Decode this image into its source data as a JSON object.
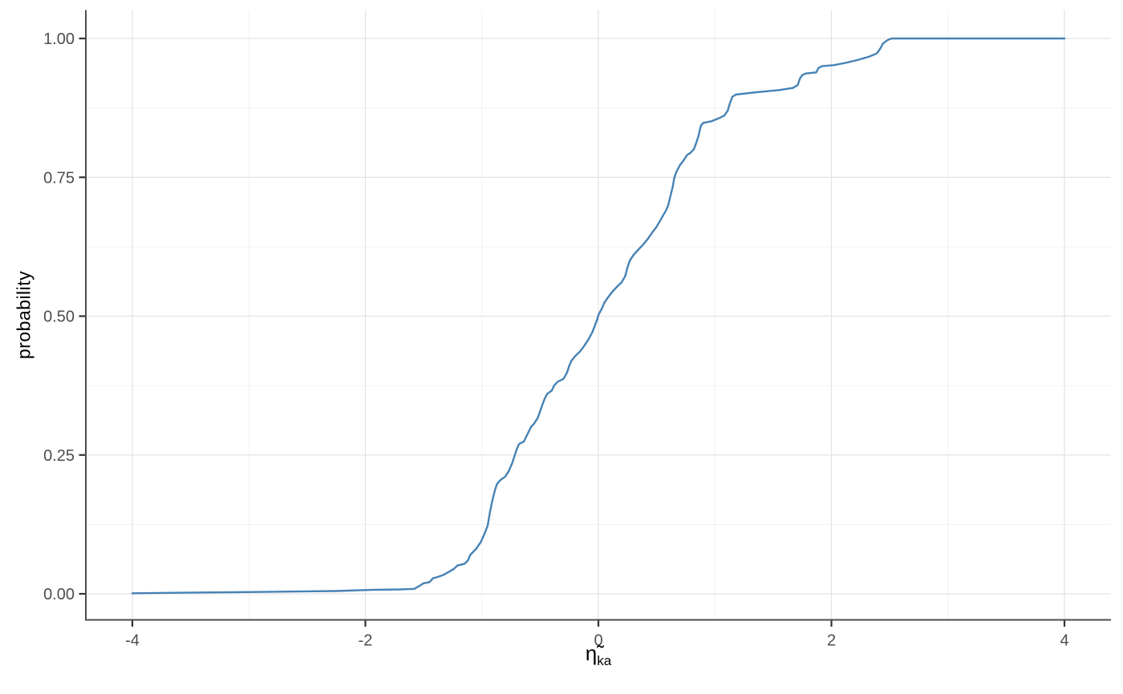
{
  "chart_data": {
    "type": "line",
    "subtype": "ecdf",
    "title": "",
    "xlabel_base": "η̃",
    "xlabel_sub": "ka",
    "ylabel": "probability",
    "legend": "none",
    "grid": true,
    "xlim": [
      -4.4,
      4.4
    ],
    "ylim": [
      -0.047,
      1.051
    ],
    "x_ticks": [
      {
        "value": -4,
        "label": "-4"
      },
      {
        "value": -2,
        "label": "-2"
      },
      {
        "value": 0,
        "label": "0"
      },
      {
        "value": 2,
        "label": "2"
      },
      {
        "value": 4,
        "label": "4"
      }
    ],
    "y_ticks": [
      {
        "value": 0.0,
        "label": "0.00"
      },
      {
        "value": 0.25,
        "label": "0.25"
      },
      {
        "value": 0.5,
        "label": "0.50"
      },
      {
        "value": 0.75,
        "label": "0.75"
      },
      {
        "value": 1.0,
        "label": "1.00"
      }
    ],
    "x_minor_ticks": [
      -3,
      -1,
      1,
      3
    ],
    "y_minor_ticks": [
      0.125,
      0.375,
      0.625,
      0.875
    ],
    "colors": {
      "line": "#4682B4",
      "grid_major": "#E3E3E3",
      "grid_minor": "#F0F0F0",
      "axis_line": "#4D4D4D",
      "tick_mark": "#333333",
      "tick_label": "#4D4D4D",
      "axis_title": "#000000",
      "background": "#FFFFFF"
    },
    "series": [
      {
        "name": "ecdf",
        "points": [
          [
            -4.0,
            0.001
          ],
          [
            -3.55,
            0.002
          ],
          [
            -3.1,
            0.003
          ],
          [
            -2.65,
            0.004
          ],
          [
            -2.25,
            0.005
          ],
          [
            -1.95,
            0.007
          ],
          [
            -1.7,
            0.008
          ],
          [
            -1.58,
            0.009
          ],
          [
            -1.53,
            0.015
          ],
          [
            -1.5,
            0.019
          ],
          [
            -1.45,
            0.021
          ],
          [
            -1.42,
            0.028
          ],
          [
            -1.37,
            0.031
          ],
          [
            -1.33,
            0.034
          ],
          [
            -1.28,
            0.04
          ],
          [
            -1.24,
            0.045
          ],
          [
            -1.21,
            0.051
          ],
          [
            -1.15,
            0.054
          ],
          [
            -1.12,
            0.06
          ],
          [
            -1.1,
            0.07
          ],
          [
            -1.05,
            0.081
          ],
          [
            -1.01,
            0.093
          ],
          [
            -0.98,
            0.107
          ],
          [
            -0.95,
            0.123
          ],
          [
            -0.93,
            0.148
          ],
          [
            -0.91,
            0.168
          ],
          [
            -0.89,
            0.185
          ],
          [
            -0.87,
            0.198
          ],
          [
            -0.84,
            0.205
          ],
          [
            -0.8,
            0.211
          ],
          [
            -0.77,
            0.221
          ],
          [
            -0.74,
            0.235
          ],
          [
            -0.72,
            0.248
          ],
          [
            -0.7,
            0.261
          ],
          [
            -0.68,
            0.27
          ],
          [
            -0.64,
            0.274
          ],
          [
            -0.61,
            0.287
          ],
          [
            -0.58,
            0.3
          ],
          [
            -0.55,
            0.307
          ],
          [
            -0.52,
            0.317
          ],
          [
            -0.5,
            0.329
          ],
          [
            -0.48,
            0.341
          ],
          [
            -0.46,
            0.352
          ],
          [
            -0.44,
            0.36
          ],
          [
            -0.4,
            0.366
          ],
          [
            -0.38,
            0.375
          ],
          [
            -0.35,
            0.382
          ],
          [
            -0.3,
            0.387
          ],
          [
            -0.27,
            0.398
          ],
          [
            -0.25,
            0.411
          ],
          [
            -0.23,
            0.42
          ],
          [
            -0.2,
            0.428
          ],
          [
            -0.16,
            0.436
          ],
          [
            -0.12,
            0.447
          ],
          [
            -0.08,
            0.46
          ],
          [
            -0.05,
            0.472
          ],
          [
            -0.03,
            0.483
          ],
          [
            -0.01,
            0.494
          ],
          [
            0.0,
            0.502
          ],
          [
            0.03,
            0.514
          ],
          [
            0.05,
            0.524
          ],
          [
            0.08,
            0.533
          ],
          [
            0.12,
            0.544
          ],
          [
            0.16,
            0.553
          ],
          [
            0.2,
            0.561
          ],
          [
            0.23,
            0.572
          ],
          [
            0.25,
            0.588
          ],
          [
            0.27,
            0.6
          ],
          [
            0.3,
            0.61
          ],
          [
            0.34,
            0.619
          ],
          [
            0.38,
            0.628
          ],
          [
            0.42,
            0.638
          ],
          [
            0.46,
            0.65
          ],
          [
            0.5,
            0.661
          ],
          [
            0.53,
            0.672
          ],
          [
            0.56,
            0.683
          ],
          [
            0.58,
            0.69
          ],
          [
            0.6,
            0.7
          ],
          [
            0.62,
            0.718
          ],
          [
            0.64,
            0.735
          ],
          [
            0.65,
            0.748
          ],
          [
            0.67,
            0.76
          ],
          [
            0.7,
            0.772
          ],
          [
            0.73,
            0.78
          ],
          [
            0.76,
            0.79
          ],
          [
            0.79,
            0.794
          ],
          [
            0.82,
            0.801
          ],
          [
            0.84,
            0.812
          ],
          [
            0.86,
            0.825
          ],
          [
            0.87,
            0.835
          ],
          [
            0.88,
            0.843
          ],
          [
            0.9,
            0.848
          ],
          [
            0.97,
            0.851
          ],
          [
            1.03,
            0.856
          ],
          [
            1.08,
            0.861
          ],
          [
            1.11,
            0.87
          ],
          [
            1.13,
            0.884
          ],
          [
            1.15,
            0.895
          ],
          [
            1.18,
            0.899
          ],
          [
            1.35,
            0.903
          ],
          [
            1.55,
            0.907
          ],
          [
            1.67,
            0.911
          ],
          [
            1.71,
            0.916
          ],
          [
            1.73,
            0.928
          ],
          [
            1.75,
            0.934
          ],
          [
            1.78,
            0.937
          ],
          [
            1.87,
            0.939
          ],
          [
            1.89,
            0.947
          ],
          [
            1.92,
            0.95
          ],
          [
            2.02,
            0.952
          ],
          [
            2.12,
            0.956
          ],
          [
            2.22,
            0.961
          ],
          [
            2.32,
            0.967
          ],
          [
            2.39,
            0.973
          ],
          [
            2.42,
            0.982
          ],
          [
            2.44,
            0.99
          ],
          [
            2.46,
            0.994
          ],
          [
            2.49,
            0.998
          ],
          [
            2.52,
            1.0
          ],
          [
            4.0,
            1.0
          ]
        ]
      }
    ]
  }
}
